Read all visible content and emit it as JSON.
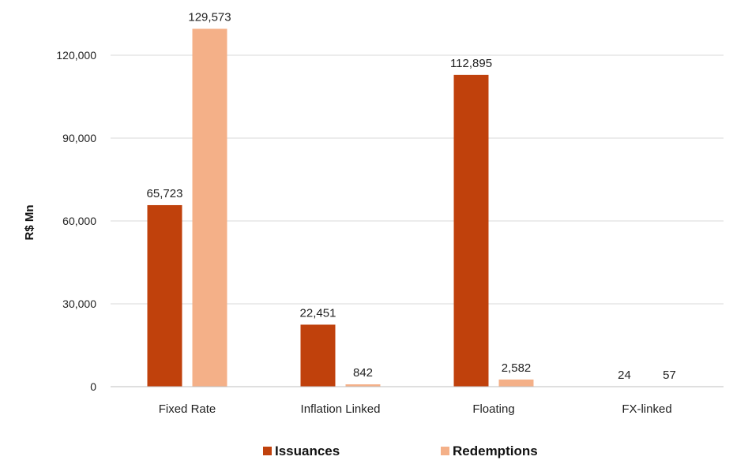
{
  "chart_data": {
    "type": "bar",
    "title": "",
    "xlabel": "",
    "ylabel": "R$ Mn",
    "ylim": [
      0,
      135000
    ],
    "yticks": [
      0,
      30000,
      60000,
      90000,
      120000
    ],
    "ytick_labels": [
      "0",
      "30,000",
      "60,000",
      "90,000",
      "120,000"
    ],
    "grid": true,
    "legend_position": "bottom",
    "categories": [
      "Fixed Rate",
      "Inflation Linked",
      "Floating",
      "FX-linked"
    ],
    "series": [
      {
        "name": "Issuances",
        "color": "#C0410C",
        "values": [
          65723,
          22451,
          112895,
          24
        ],
        "data_labels": [
          "65,723",
          "22,451",
          "112,895",
          "24"
        ]
      },
      {
        "name": "Redemptions",
        "color": "#F4B088",
        "values": [
          129573,
          842,
          2582,
          57
        ],
        "data_labels": [
          "129,573",
          "842",
          "2,582",
          "57"
        ]
      }
    ]
  }
}
